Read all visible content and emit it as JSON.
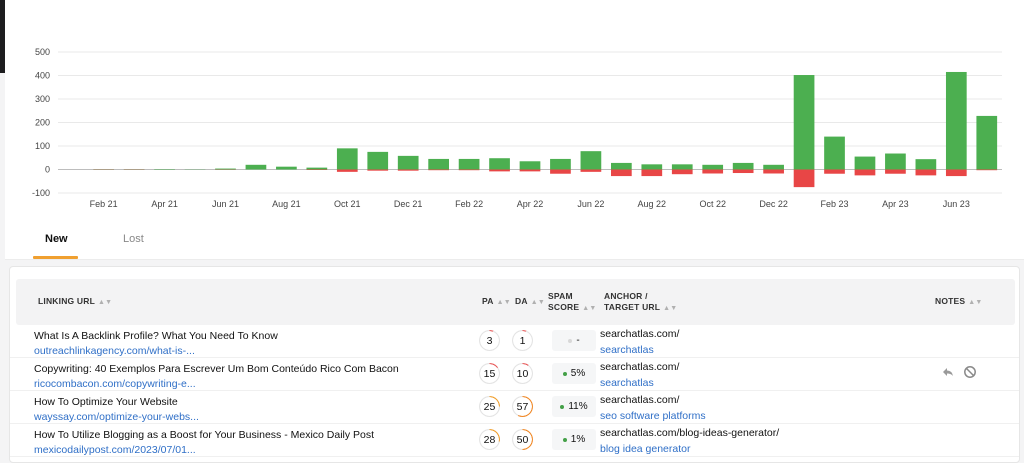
{
  "chart_data": {
    "type": "bar",
    "title": "",
    "ylim": [
      -100,
      500
    ],
    "yticks": [
      "500",
      "400",
      "300",
      "200",
      "100",
      "0",
      "-100"
    ],
    "xtick_labels": [
      "Feb 21",
      "Apr 21",
      "Jun 21",
      "Aug 21",
      "Oct 21",
      "Dec 21",
      "Feb 22",
      "Apr 22",
      "Jun 22",
      "Aug 22",
      "Oct 22",
      "Dec 22",
      "Feb 23",
      "Apr 23",
      "Jun 23"
    ],
    "categories": [
      "Jan 21",
      "Feb 21",
      "Mar 21",
      "Apr 21",
      "May 21",
      "Jun 21",
      "Jul 21",
      "Aug 21",
      "Sep 21",
      "Oct 21",
      "Nov 21",
      "Dec 21",
      "Jan 22",
      "Feb 22",
      "Mar 22",
      "Apr 22",
      "May 22",
      "Jun 22",
      "Jul 22",
      "Aug 22",
      "Sep 22",
      "Oct 22",
      "Nov 22",
      "Dec 22",
      "Jan 23",
      "Feb 23",
      "Mar 23",
      "Apr 23",
      "May 23",
      "Jun 23",
      "Jul 23"
    ],
    "series": [
      {
        "name": "New",
        "color": "#4caf50",
        "values": [
          0,
          1,
          1,
          2,
          1,
          4,
          20,
          12,
          8,
          90,
          75,
          58,
          45,
          45,
          48,
          35,
          45,
          78,
          28,
          22,
          22,
          20,
          28,
          20,
          402,
          140,
          55,
          68,
          44,
          415,
          228
        ]
      },
      {
        "name": "Lost",
        "color": "#e84646",
        "values": [
          0,
          -1,
          -1,
          0,
          0,
          -1,
          0,
          0,
          -2,
          -10,
          -5,
          -5,
          -3,
          -3,
          -8,
          -8,
          -18,
          -10,
          -28,
          -28,
          -20,
          -17,
          -15,
          -17,
          -75,
          -18,
          -25,
          -18,
          -25,
          -28,
          -3
        ]
      }
    ]
  },
  "tabs": {
    "new": "New",
    "lost": "Lost"
  },
  "table": {
    "headers": {
      "linking_url": "LINKING URL",
      "pa": "PA",
      "da": "DA",
      "spam_line1": "SPAM",
      "spam_line2": "SCORE",
      "anchor_line1": "ANCHOR /",
      "anchor_line2": "TARGET URL",
      "notes": "NOTES"
    },
    "rows": [
      {
        "title": "What Is A Backlink Profile? What You Need To Know",
        "url": "outreachlinkagency.com/what-is-...",
        "pa": "3",
        "da": "1",
        "spam": "-",
        "spam_color": "#d8d8d8",
        "anchor": "searchatlas.com/",
        "target": "searchatlas"
      },
      {
        "title": "Copywriting: 40 Exemplos Para Escrever Um Bom Conteúdo Rico Com Bacon",
        "url": "ricocombacon.com/copywriting-e...",
        "pa": "15",
        "da": "10",
        "spam": "5%",
        "spam_color": "#43a047",
        "anchor": "searchatlas.com/",
        "target": "searchatlas"
      },
      {
        "title": "How To Optimize Your Website",
        "url": "wayssay.com/optimize-your-webs...",
        "pa": "25",
        "da": "57",
        "spam": "11%",
        "spam_color": "#43a047",
        "anchor": "searchatlas.com/",
        "target": "seo software platforms"
      },
      {
        "title": "How To Utilize Blogging as a Boost for Your Business - Mexico Daily Post",
        "url": "mexicodailypost.com/2023/07/01...",
        "pa": "28",
        "da": "50",
        "spam": "1%",
        "spam_color": "#43a047",
        "anchor": "searchatlas.com/blog-ideas-generator/",
        "target": "blog idea generator"
      }
    ]
  }
}
